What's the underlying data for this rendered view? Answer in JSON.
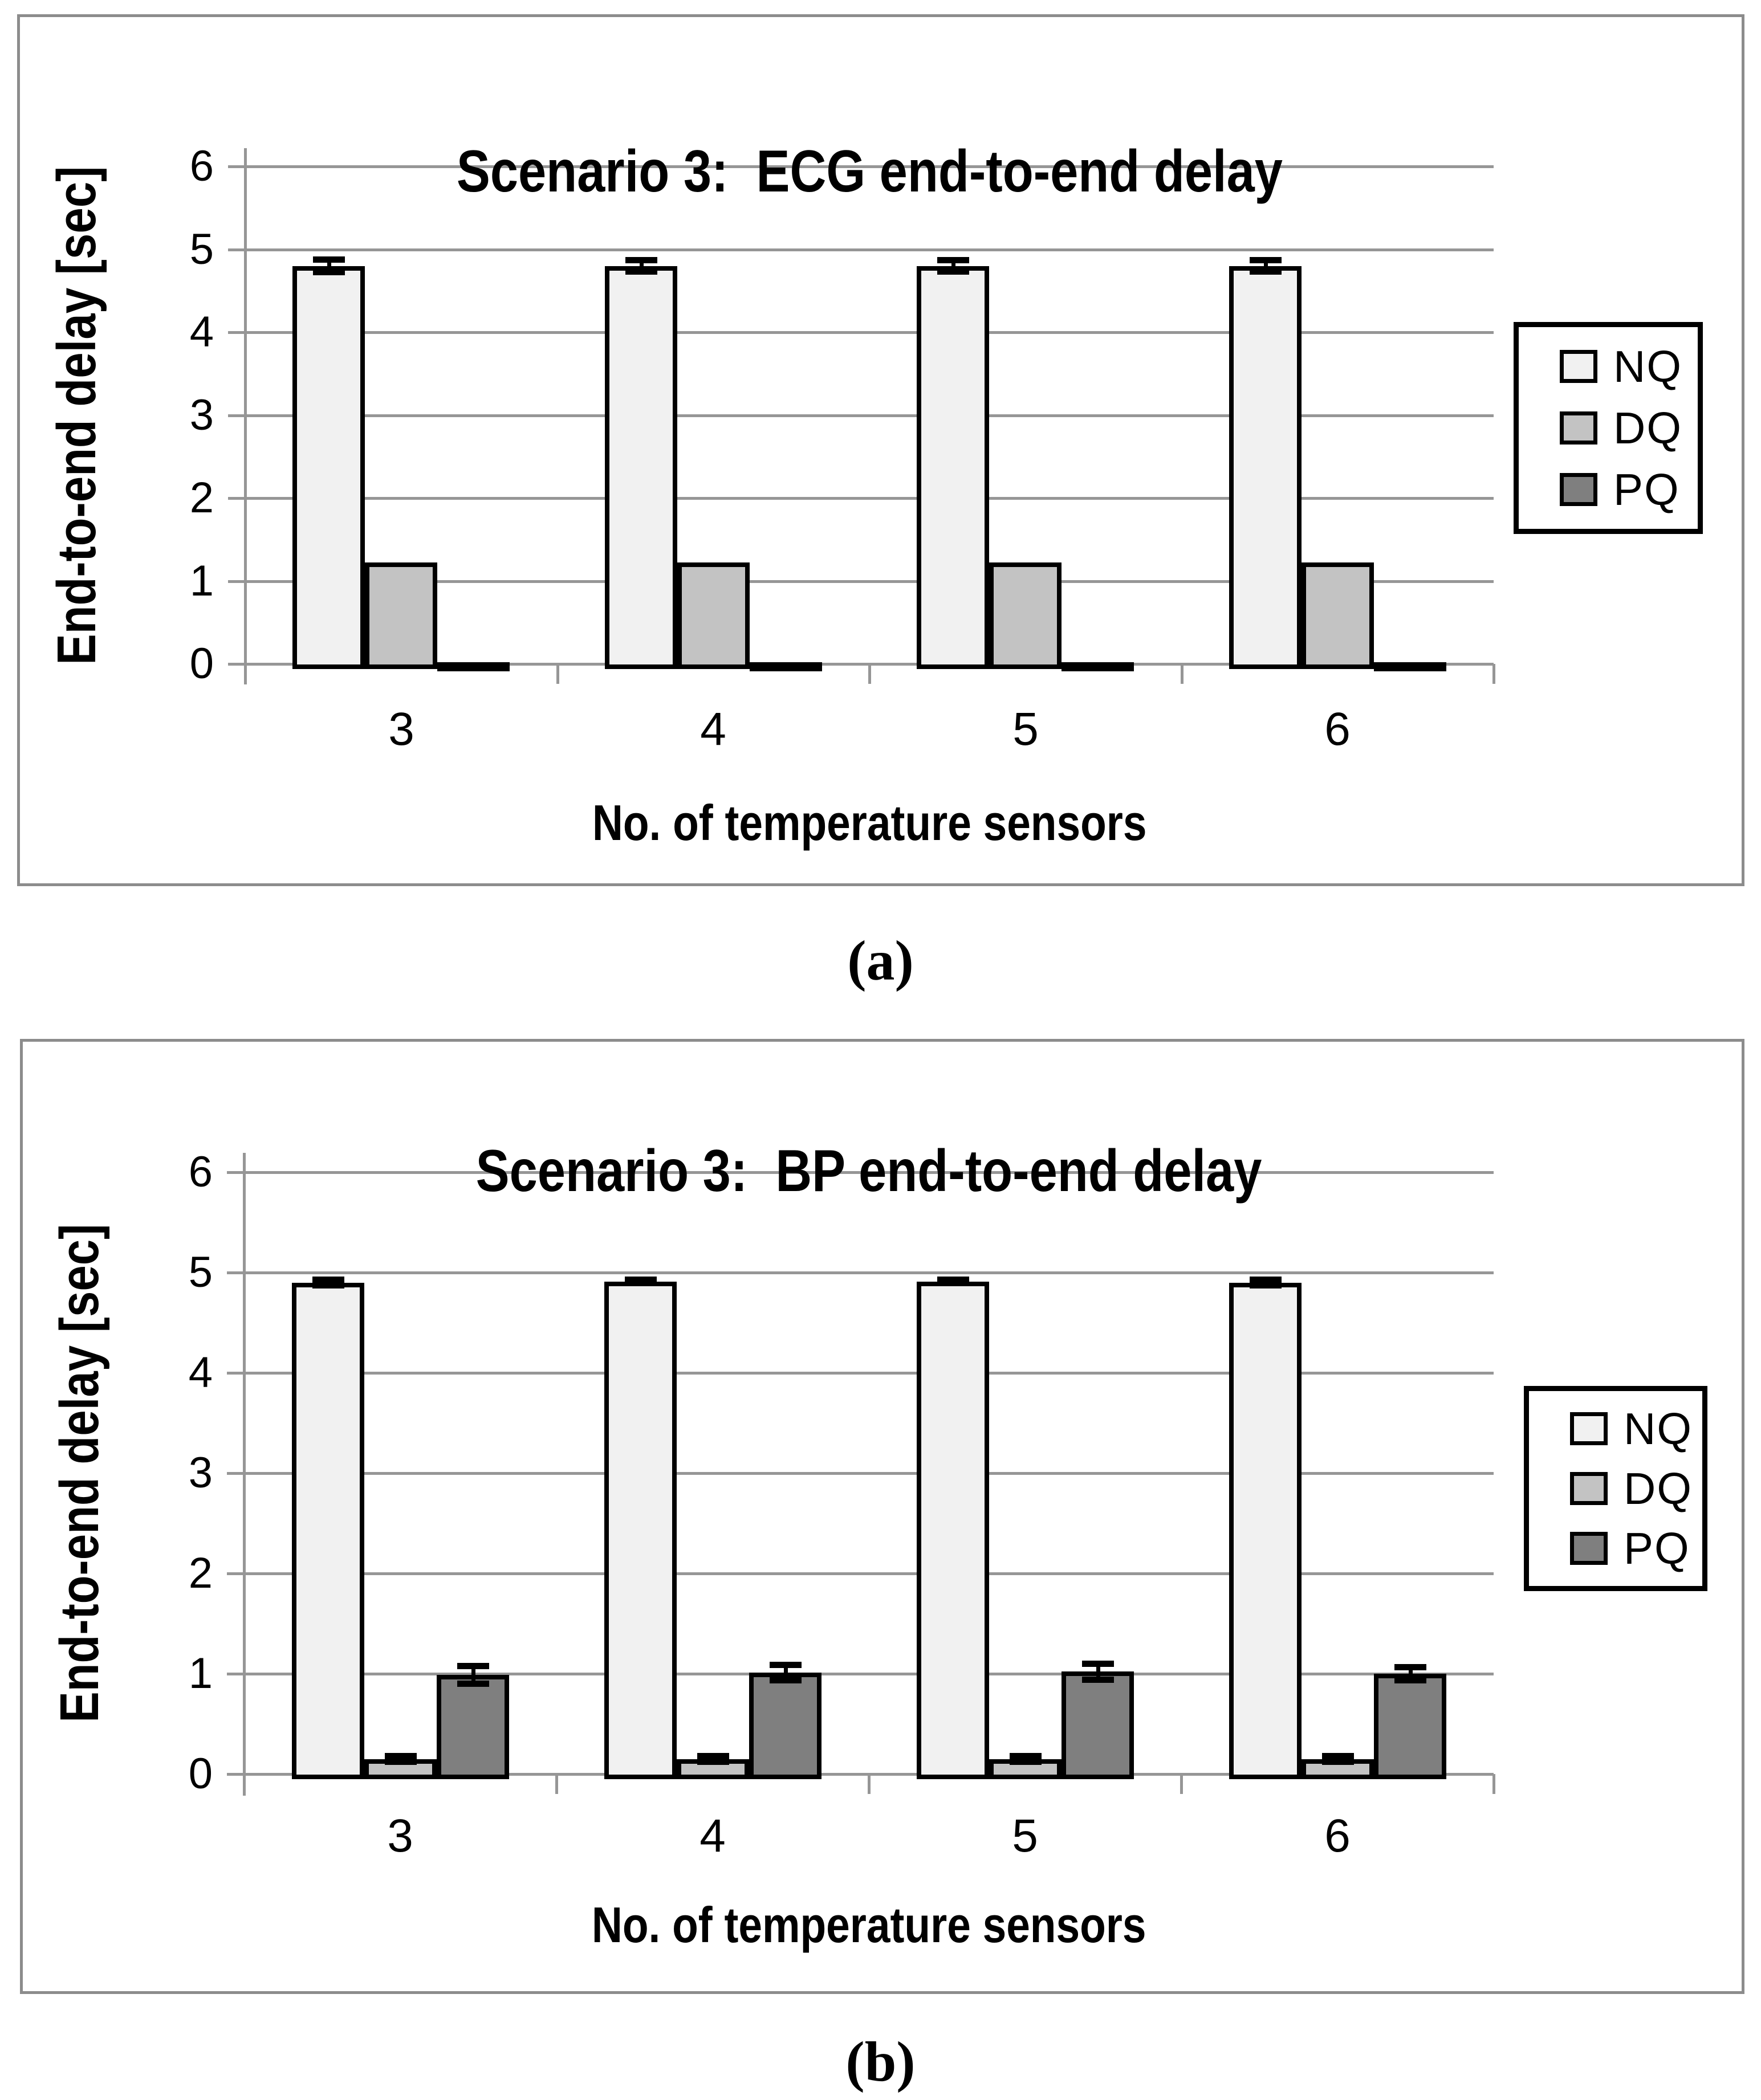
{
  "figure": {
    "caption_a": "(a)",
    "caption_b": "(b)"
  },
  "colors": {
    "grid": "#969696",
    "panel_border": "#8c8c8c",
    "bar_border": "#000000",
    "nq_fill": "#f1f1f1",
    "dq_fill": "#c3c3c3",
    "pq_fill": "#7f7f7f",
    "error_bar": "#000000"
  },
  "chart_data": [
    {
      "id": "a",
      "type": "bar",
      "title": "Scenario 3:  ECG end-to-end delay",
      "xlabel": "No. of temperature sensors",
      "ylabel": "End-to-end delay [sec]",
      "categories": [
        "3",
        "4",
        "5",
        "6"
      ],
      "yticks": [
        0,
        1,
        2,
        3,
        4,
        5,
        6
      ],
      "ylim": [
        0,
        6
      ],
      "grid": true,
      "legend_position": "right",
      "series": [
        {
          "name": "NQ",
          "color": "#f1f1f1",
          "values": [
            4.8,
            4.8,
            4.8,
            4.8
          ],
          "errors": [
            0.08,
            0.07,
            0.07,
            0.07
          ]
        },
        {
          "name": "DQ",
          "color": "#c3c3c3",
          "values": [
            1.22,
            1.22,
            1.22,
            1.22
          ],
          "errors": [
            0,
            0,
            0,
            0
          ]
        },
        {
          "name": "PQ",
          "color": "#7f7f7f",
          "values": [
            0.02,
            0.02,
            0.02,
            0.02
          ],
          "errors": [
            0,
            0,
            0,
            0
          ]
        }
      ]
    },
    {
      "id": "b",
      "type": "bar",
      "title": "Scenario 3:  BP end-to-end delay",
      "xlabel": "No. of temperature sensors",
      "ylabel": "End-to-end delay [sec]",
      "categories": [
        "3",
        "4",
        "5",
        "6"
      ],
      "yticks": [
        0,
        1,
        2,
        3,
        4,
        5,
        6
      ],
      "ylim": [
        0,
        6
      ],
      "grid": true,
      "legend_position": "right",
      "series": [
        {
          "name": "NQ",
          "color": "#f1f1f1",
          "values": [
            4.9,
            4.91,
            4.91,
            4.9
          ],
          "errors": [
            0.03,
            0.02,
            0.02,
            0.03
          ]
        },
        {
          "name": "DQ",
          "color": "#c3c3c3",
          "values": [
            0.15,
            0.15,
            0.15,
            0.15
          ],
          "errors": [
            0.03,
            0.03,
            0.03,
            0.03
          ]
        },
        {
          "name": "PQ",
          "color": "#7f7f7f",
          "values": [
            0.99,
            1.01,
            1.02,
            1.0
          ],
          "errors": [
            0.09,
            0.08,
            0.08,
            0.07
          ]
        }
      ]
    }
  ]
}
